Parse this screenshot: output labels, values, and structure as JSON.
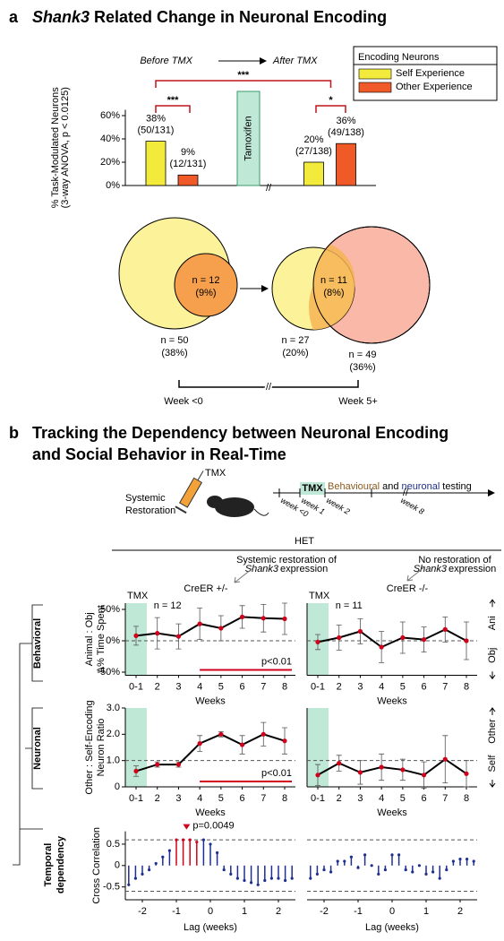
{
  "panel_a": {
    "label": "a",
    "title_italic": "Shank3",
    "title": "Related Change in Neuronal Encoding",
    "venn": {
      "before_overlap": [
        "n = 12",
        "(9%)"
      ],
      "before_self": [
        "n = 50",
        "(38%)"
      ],
      "after_overlap": [
        "n = 11",
        "(8%)"
      ],
      "after_self": [
        "n = 27",
        "(20%)"
      ],
      "after_other": [
        "n = 49",
        "(36%)"
      ],
      "timeline": [
        "Week <0",
        "Week 5+"
      ]
    }
  },
  "panel_b": {
    "label": "b",
    "title": [
      "Tracking the Dependency between Neuronal Encoding",
      "and Social Behavior in Real-Time"
    ],
    "schematic": {
      "label": [
        "Systemic",
        "Restoration"
      ],
      "syringe": "TMX",
      "tmx": "TMX",
      "testing": [
        "Behavioural",
        "and",
        "neuronal",
        "testing"
      ],
      "weeks": [
        "week <0",
        "week 1",
        "week 2",
        "week 8"
      ]
    },
    "group": "HET",
    "note_left": {
      "line1": "Systemic restoration of",
      "gene": "Shank3",
      "line2": "expression"
    },
    "note_right": {
      "line1": "No restoration of",
      "gene": "Shank3",
      "line2": "expression"
    },
    "genotypes": [
      "CreER +/-",
      "CreER -/-"
    ],
    "rows": [
      "Behavioral",
      "Neuronal"
    ],
    "row3": [
      "Temporal",
      "dependency"
    ]
  },
  "chart_data": [
    {
      "type": "bar",
      "ylabel": [
        "% Task-Modulated Neurons",
        "(3-way ANOVA, p < 0.0125)"
      ],
      "categories": [
        "Before TMX",
        "After TMX"
      ],
      "legend_title": "Encoding Neurons",
      "series": [
        {
          "name": "Self Experience",
          "color": "#f3eb3b",
          "values": [
            38,
            20
          ],
          "value_labels": [
            "38%",
            "20%"
          ],
          "count_labels": [
            "(50/131)",
            "(27/138)"
          ]
        },
        {
          "name": "Other Experience",
          "color": "#f05a28",
          "values": [
            9,
            36
          ],
          "value_labels": [
            "9%",
            "36%"
          ],
          "count_labels": [
            "(12/131)",
            "(49/138)"
          ]
        }
      ],
      "ylim": [
        0,
        65
      ],
      "yticks": [
        {
          "value": 0,
          "label": "0%"
        },
        {
          "value": 20,
          "label": "20%"
        },
        {
          "value": 40,
          "label": "40%"
        },
        {
          "value": 60,
          "label": "60%"
        }
      ],
      "annotation": "Tamoxifen",
      "significance": [
        "***",
        "***",
        "*"
      ],
      "significance_color": "#c0151b"
    },
    {
      "type": "line",
      "categories": [
        "0-1",
        "2",
        "3",
        "4",
        "5",
        "6",
        "7",
        "8"
      ],
      "values": [
        8,
        12,
        7,
        27,
        20,
        38,
        36,
        35
      ],
      "errors": [
        15,
        25,
        20,
        25,
        20,
        18,
        22,
        25
      ],
      "ylim": [
        -55,
        60
      ],
      "yticks": [
        {
          "value": 50,
          "label": "50%"
        },
        {
          "value": 0,
          "label": "0%"
        },
        {
          "value": -50,
          "label": "-50%"
        }
      ],
      "reference_line": 0,
      "xlabel": "Weeks",
      "ylabel": [
        "Animal : Obj",
        "Δ% Time Spent"
      ],
      "shade_label": "TMX",
      "n_label": "n = 12",
      "p_label": "p<0.01",
      "p_span_indices": [
        3,
        7
      ],
      "color": "#000000",
      "marker_color": "#d0021b",
      "shade_color": "#bfe8d6"
    },
    {
      "type": "line",
      "categories": [
        "0-1",
        "2",
        "3",
        "4",
        "5",
        "6",
        "7",
        "8"
      ],
      "values": [
        -2,
        5,
        15,
        -10,
        5,
        2,
        18,
        0
      ],
      "errors": [
        12,
        20,
        20,
        25,
        25,
        20,
        20,
        30
      ],
      "ylim": [
        -55,
        60
      ],
      "reference_line": 0,
      "xlabel": "Weeks",
      "shade_label": "TMX",
      "n_label": "n = 11",
      "side_labels": [
        "Ani",
        "Obj"
      ],
      "side_colors": [
        "#a0208c",
        "#000000"
      ],
      "color": "#000000",
      "marker_color": "#d0021b",
      "shade_color": "#bfe8d6"
    },
    {
      "type": "line",
      "categories": [
        "0-1",
        "2",
        "3",
        "4",
        "5",
        "6",
        "7",
        "8"
      ],
      "values": [
        0.6,
        0.85,
        0.85,
        1.65,
        2.0,
        1.6,
        2.0,
        1.75
      ],
      "errors": [
        0.2,
        0.1,
        0.1,
        0.3,
        0.1,
        0.35,
        0.45,
        0.5
      ],
      "ylim": [
        0,
        3
      ],
      "yticks": [
        0,
        {
          "value": 1,
          "label": "1.0"
        },
        {
          "value": 2,
          "label": "2.0"
        },
        {
          "value": 3,
          "label": "3.0"
        }
      ],
      "reference_line": 1,
      "xlabel": "Weeks",
      "ylabel": [
        "Other : Self-Encoding",
        "Neuron Ratio"
      ],
      "p_label": "p<0.01",
      "p_span_indices": [
        3,
        7
      ],
      "color": "#000000",
      "marker_color": "#d0021b",
      "shade_color": "#bfe8d6"
    },
    {
      "type": "line",
      "categories": [
        "0-1",
        "2",
        "3",
        "4",
        "5",
        "6",
        "7",
        "8"
      ],
      "values": [
        0.45,
        0.9,
        0.55,
        0.75,
        0.65,
        0.45,
        1.05,
        0.5
      ],
      "errors": [
        0.4,
        0.3,
        0.45,
        0.5,
        0.4,
        0.5,
        0.9,
        0.5
      ],
      "ylim": [
        0,
        3
      ],
      "reference_line": 1,
      "xlabel": "Weeks",
      "side_labels": [
        "Other",
        "Self"
      ],
      "side_colors": [
        "#a0208c",
        "#000000"
      ],
      "color": "#000000",
      "marker_color": "#d0021b",
      "shade_color": "#bfe8d6"
    },
    {
      "type": "stem",
      "x": [
        -2.4,
        -2.2,
        -2,
        -1.8,
        -1.6,
        -1.4,
        -1.2,
        -1,
        -0.8,
        -0.6,
        -0.4,
        -0.2,
        0,
        0.2,
        0.4,
        0.6,
        0.8,
        1,
        1.2,
        1.4,
        1.6,
        1.8,
        2,
        2.2,
        2.4
      ],
      "values": [
        -0.45,
        -0.3,
        -0.2,
        -0.1,
        0.05,
        0.2,
        0.35,
        0.6,
        0.6,
        0.6,
        0.55,
        0.6,
        0.5,
        0.3,
        -0.1,
        -0.2,
        -0.3,
        -0.35,
        -0.4,
        -0.45,
        -0.35,
        -0.3,
        -0.3,
        -0.35,
        -0.3
      ],
      "xlim": [
        -2.5,
        2.5
      ],
      "ylim": [
        -0.8,
        0.8
      ],
      "xticks": [
        -2,
        -1,
        0,
        1,
        2
      ],
      "yticks": [
        0.5,
        0,
        -0.5
      ],
      "reference_lines": [
        0.6,
        -0.6
      ],
      "xlabel": "Lag (weeks)",
      "ylabel": "Cross Correlation",
      "color": "#1f2f8f",
      "highlight_indices": [
        7,
        8,
        9,
        10
      ],
      "highlight_color": "#d0021b",
      "p_label": "p=0.0049"
    },
    {
      "type": "stem",
      "x": [
        -2.4,
        -2.2,
        -2,
        -1.8,
        -1.6,
        -1.4,
        -1.2,
        -1,
        -0.8,
        -0.6,
        -0.4,
        -0.2,
        0,
        0.2,
        0.4,
        0.6,
        0.8,
        1,
        1.2,
        1.4,
        1.6,
        1.8,
        2,
        2.2,
        2.4
      ],
      "values": [
        -0.3,
        -0.2,
        -0.1,
        -0.15,
        0.1,
        0.1,
        0.2,
        -0.05,
        0.25,
        0.0,
        -0.2,
        -0.1,
        0.25,
        0.25,
        -0.1,
        -0.15,
        0.0,
        -0.2,
        -0.15,
        -0.3,
        -0.1,
        0.1,
        0.15,
        0.15,
        0.1
      ],
      "xlim": [
        -2.5,
        2.5
      ],
      "ylim": [
        -0.8,
        0.8
      ],
      "xticks": [
        -2,
        -1,
        0,
        1,
        2
      ],
      "reference_lines": [
        0.6,
        -0.6
      ],
      "xlabel": "Lag (weeks)",
      "color": "#1f2f8f"
    }
  ]
}
